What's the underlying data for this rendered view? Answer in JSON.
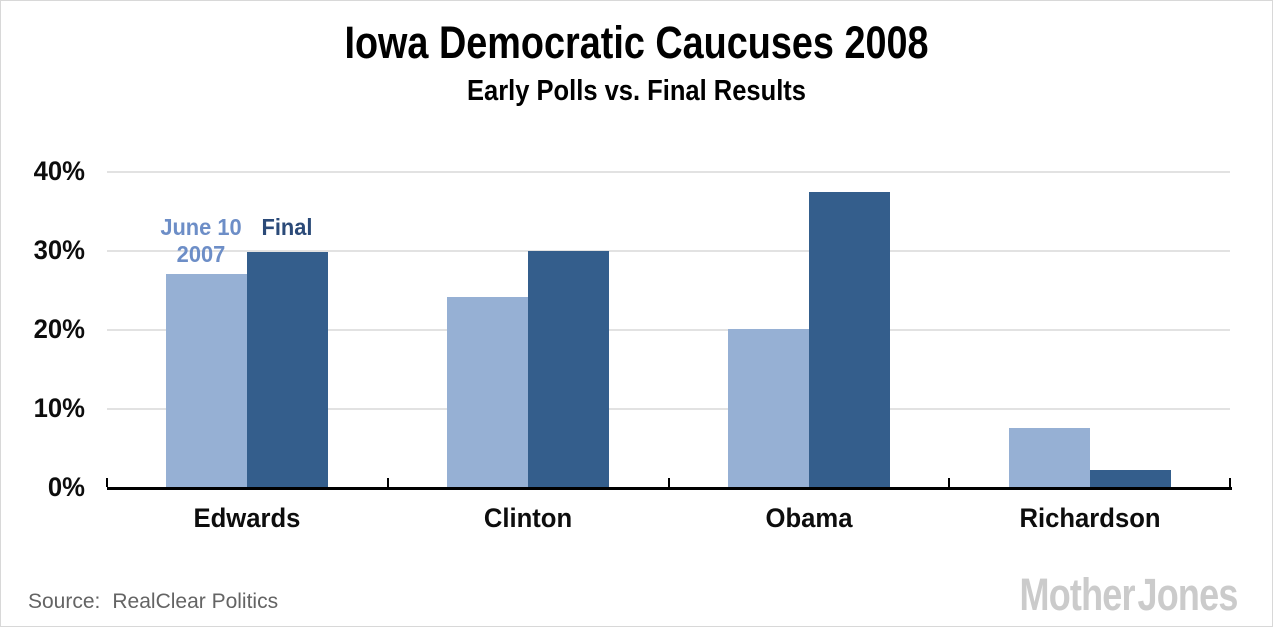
{
  "header": {
    "title": "Iowa Democratic Caucuses 2008",
    "subtitle": "Early Polls vs. Final Results"
  },
  "footer": {
    "source_label": "Source:",
    "source_value": "RealClear Politics",
    "brand": "Mother Jones"
  },
  "chart_data": {
    "type": "bar",
    "title": "Iowa Democratic Caucuses 2008",
    "subtitle": "Early Polls vs. Final Results",
    "categories": [
      "Edwards",
      "Clinton",
      "Obama",
      "Richardson"
    ],
    "series": [
      {
        "name": "June 10 2007",
        "label_lines": [
          "June 10",
          "2007"
        ],
        "color": "#96b0d4",
        "label_color": "#6d8ec7",
        "values": [
          27,
          24,
          20,
          7.5
        ]
      },
      {
        "name": "Final",
        "label_lines": [
          "Final"
        ],
        "color": "#345e8c",
        "label_color": "#2b4a78",
        "values": [
          29.7,
          29.9,
          37.4,
          2.1
        ]
      }
    ],
    "ylabel_ticks": [
      "0%",
      "10%",
      "20%",
      "30%",
      "40%"
    ],
    "ylim": [
      0,
      40
    ],
    "y_tick_step": 10,
    "grid": "horizontal gridlines at 10/20/30/40",
    "legend_position": "above Edwards bars",
    "axis_color": "#000000",
    "gridline_color": "#e2e2e2"
  }
}
